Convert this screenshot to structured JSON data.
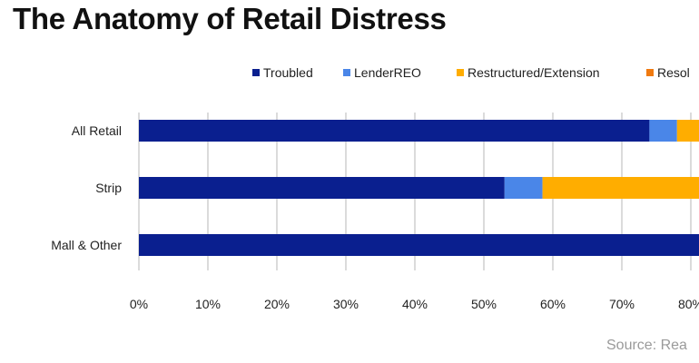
{
  "title": "The Anatomy of Retail Distress",
  "source": "Source: Rea",
  "colors": {
    "Troubled": "#0a1f8f",
    "LenderREO": "#4a86e8",
    "Restructured/Extension": "#ffad00",
    "Resolved": "#f07a10"
  },
  "chart_data": {
    "type": "bar",
    "orientation": "horizontal",
    "stacked": true,
    "categories": [
      "All Retail",
      "Strip",
      "Mall & Other"
    ],
    "series": [
      {
        "name": "Troubled",
        "values": [
          74,
          53,
          100
        ]
      },
      {
        "name": "LenderREO",
        "values": [
          4,
          5.5,
          0
        ]
      },
      {
        "name": "Restructured/Extension",
        "values": [
          22,
          41.5,
          0
        ]
      },
      {
        "name": "Resolved",
        "values": [
          0,
          0,
          0
        ]
      }
    ],
    "legend_labels": [
      "Troubled",
      "LenderREO",
      "Restructured/Extension",
      "Resol"
    ],
    "xlim": [
      0,
      100
    ],
    "x_ticks": [
      "0%",
      "10%",
      "20%",
      "30%",
      "40%",
      "50%",
      "60%",
      "70%",
      "80%"
    ],
    "grid": true,
    "legend_position": "top-right"
  }
}
